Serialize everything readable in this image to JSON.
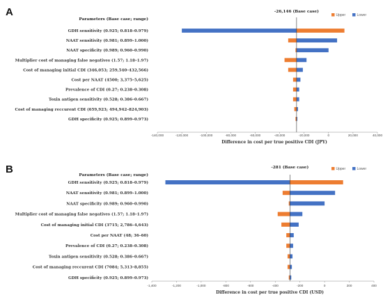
{
  "chart_data": [
    {
      "panel": "A",
      "type": "bar",
      "subtype": "tornado",
      "base_case_label": "-26,146 (Base case)",
      "base_case_value": -26146,
      "params_header": "Parameters (Base case; range)",
      "xlabel": "Difference in cost per true positive CDI (JPY)",
      "xlim": [
        -140000,
        40000
      ],
      "x_ticks": [
        -140000,
        -120000,
        -100000,
        -80000,
        -60000,
        -40000,
        -20000,
        0,
        20000,
        40000
      ],
      "x_tick_labels": [
        "-140,000",
        "-120,000",
        "-100,000",
        "-80,000",
        "-60,000",
        "-40,000",
        "-20,000",
        "0",
        "20,000",
        "40,000"
      ],
      "legend": [
        {
          "name": "Upper",
          "color": "#ED7D31"
        },
        {
          "name": "Lower",
          "color": "#4472C4"
        }
      ],
      "legend_position": "top-right",
      "categories": [
        "GDH sensitivity (0.925; 0.818–0.979)",
        "NAAT sensitivity (0.981; 0.899–1.000)",
        "NAAT specificity (0.989; 0.960–0.990)",
        "Multiplier cost of managing false negatives (1.57; 1.18–1.97)",
        "Cost of managing initial CDI (346,053; 259,540–432,566)",
        "Cost per NAAT (4500; 3,375–5,625)",
        "Prevalence of CDI (0.27; 0.238–0.308)",
        "Toxin antigen sensitivity (0.528; 0.386–0.667)",
        "Cost of managing reccurent CDI (659,923; 494,942–824,903)",
        "GDH specificity (0.925; 0.899–0.973)"
      ],
      "series": [
        {
          "name": "Upper",
          "values": [
            13000,
            -33000,
            -27000,
            -36000,
            -33000,
            -29000,
            -29000,
            -29000,
            -28000,
            -27000
          ]
        },
        {
          "name": "Lower",
          "values": [
            -120000,
            7000,
            0,
            -18000,
            -21000,
            -23000,
            -24000,
            -24000,
            -25000,
            -25500
          ]
        }
      ]
    },
    {
      "panel": "B",
      "type": "bar",
      "subtype": "tornado",
      "base_case_label": "-281 (Base case)",
      "base_case_value": -281,
      "params_header": "Parameters (Base case; range)",
      "xlabel": "Difference in cost per true positive CDI (USD)",
      "xlim": [
        -1400,
        400
      ],
      "x_ticks": [
        -1400,
        -1200,
        -1000,
        -800,
        -600,
        -400,
        -200,
        0,
        200,
        400
      ],
      "x_tick_labels": [
        "-1,400",
        "-1,200",
        "-1,000",
        "-800",
        "-600",
        "-400",
        "-200",
        "0",
        "200",
        "400"
      ],
      "legend": [
        {
          "name": "Upper",
          "color": "#ED7D31"
        },
        {
          "name": "Lower",
          "color": "#4472C4"
        }
      ],
      "legend_position": "top-right",
      "categories": [
        "GDH sensitivity (0.925; 0.818–0.979)",
        "NAAT sensitivity (0.981; 0.899–1.000)",
        "NAAT specificity (0.989; 0.960–0.990)",
        "Multiplier cost of managing false negatives (1.57; 1.18–1.97)",
        "Cost of managing initial CDI (3715; 2,786–4,643)",
        "Cost per NAAT (48; 36–60)",
        "Prevalence of CDI (0.27; 0.238–0.308)",
        "Toxin antigen sensitivity (0.528; 0.386–0.667)",
        "Cost of managing reccurent CDI (7084; 5,313–8,855)",
        "GDH specificity (0.925; 0.899–0.973)"
      ],
      "series": [
        {
          "name": "Upper",
          "values": [
            150,
            -340,
            -290,
            -380,
            -350,
            -310,
            -310,
            -300,
            -300,
            -290
          ]
        },
        {
          "name": "Lower",
          "values": [
            -1290,
            85,
            0,
            -180,
            -210,
            -250,
            -255,
            -260,
            -265,
            -270
          ]
        }
      ]
    }
  ]
}
